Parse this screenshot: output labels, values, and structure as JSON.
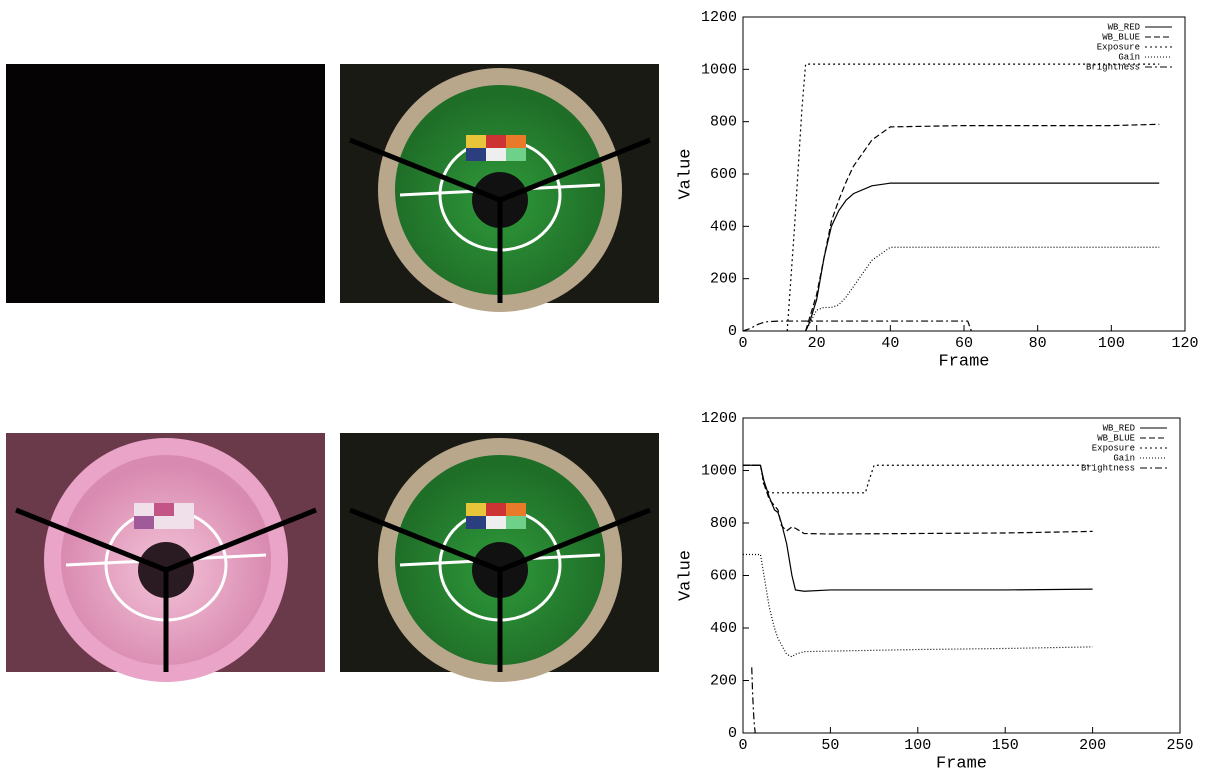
{
  "chart_data": [
    {
      "type": "line",
      "xlabel": "Frame",
      "ylabel": "Value",
      "xlim": [
        0,
        120
      ],
      "ylim": [
        0,
        1200
      ],
      "xticks": [
        0,
        20,
        40,
        60,
        80,
        100,
        120
      ],
      "yticks": [
        0,
        200,
        400,
        600,
        800,
        1000,
        1200
      ],
      "series": [
        {
          "name": "WB_RED",
          "color": "#000000",
          "dash": "solid",
          "x": [
            17,
            18,
            20,
            22,
            24,
            26,
            28,
            30,
            35,
            40,
            60,
            80,
            100,
            113
          ],
          "values": [
            0,
            30,
            120,
            280,
            400,
            460,
            500,
            525,
            555,
            565,
            565,
            565,
            565,
            565
          ]
        },
        {
          "name": "WB_BLUE",
          "color": "#000000",
          "dash": "dashed",
          "x": [
            17,
            20,
            22,
            24,
            26,
            28,
            30,
            35,
            40,
            60,
            80,
            100,
            113
          ],
          "values": [
            0,
            140,
            280,
            420,
            500,
            570,
            630,
            730,
            780,
            785,
            785,
            785,
            790
          ]
        },
        {
          "name": "Exposure",
          "color": "#000000",
          "dash": "dotted",
          "x": [
            12,
            14,
            16,
            17,
            20,
            40,
            60,
            80,
            100,
            113
          ],
          "values": [
            0,
            400,
            850,
            1020,
            1020,
            1020,
            1020,
            1020,
            1020,
            1020
          ]
        },
        {
          "name": "Gain",
          "color": "#000000",
          "dash": "fine",
          "x": [
            17,
            20,
            22,
            24,
            26,
            28,
            30,
            35,
            40,
            60,
            80,
            100,
            113
          ],
          "values": [
            0,
            80,
            90,
            90,
            100,
            130,
            170,
            270,
            320,
            320,
            320,
            320,
            320
          ]
        },
        {
          "name": "Brightness",
          "color": "#000000",
          "dash": "dashdot",
          "x": [
            0,
            2,
            4,
            6,
            10,
            20,
            40,
            60,
            61,
            62
          ],
          "values": [
            0,
            10,
            25,
            35,
            38,
            38,
            38,
            38,
            38,
            0
          ]
        }
      ]
    },
    {
      "type": "line",
      "xlabel": "Frame",
      "ylabel": "Value",
      "xlim": [
        0,
        250
      ],
      "ylim": [
        0,
        1200
      ],
      "xticks": [
        0,
        50,
        100,
        150,
        200,
        250
      ],
      "yticks": [
        0,
        200,
        400,
        600,
        800,
        1000,
        1200
      ],
      "series": [
        {
          "name": "WB_RED",
          "color": "#000000",
          "dash": "solid",
          "x": [
            0,
            10,
            12,
            15,
            18,
            20,
            22,
            25,
            28,
            30,
            35,
            50,
            100,
            150,
            200
          ],
          "values": [
            1020,
            1020,
            960,
            900,
            850,
            840,
            800,
            720,
            600,
            545,
            540,
            545,
            545,
            545,
            548
          ]
        },
        {
          "name": "WB_BLUE",
          "color": "#000000",
          "dash": "dashed",
          "x": [
            0,
            10,
            12,
            15,
            20,
            22,
            25,
            28,
            30,
            35,
            50,
            100,
            150,
            200
          ],
          "values": [
            1020,
            1020,
            950,
            890,
            850,
            790,
            770,
            785,
            780,
            760,
            758,
            760,
            762,
            768
          ]
        },
        {
          "name": "Exposure",
          "color": "#000000",
          "dash": "dotted",
          "x": [
            0,
            10,
            12,
            15,
            20,
            40,
            70,
            72,
            75,
            100,
            150,
            200
          ],
          "values": [
            1020,
            1020,
            940,
            915,
            915,
            915,
            915,
            960,
            1020,
            1020,
            1020,
            1020
          ]
        },
        {
          "name": "Gain",
          "color": "#000000",
          "dash": "fine",
          "x": [
            0,
            5,
            10,
            12,
            15,
            18,
            20,
            25,
            28,
            30,
            35,
            50,
            100,
            150,
            200
          ],
          "values": [
            680,
            680,
            680,
            600,
            480,
            400,
            360,
            300,
            290,
            300,
            310,
            312,
            318,
            322,
            328
          ]
        },
        {
          "name": "Brightness",
          "color": "#000000",
          "dash": "dashdot",
          "x": [
            5,
            5.5,
            6,
            6.5,
            7
          ],
          "values": [
            250,
            150,
            80,
            30,
            0
          ]
        }
      ]
    }
  ]
}
